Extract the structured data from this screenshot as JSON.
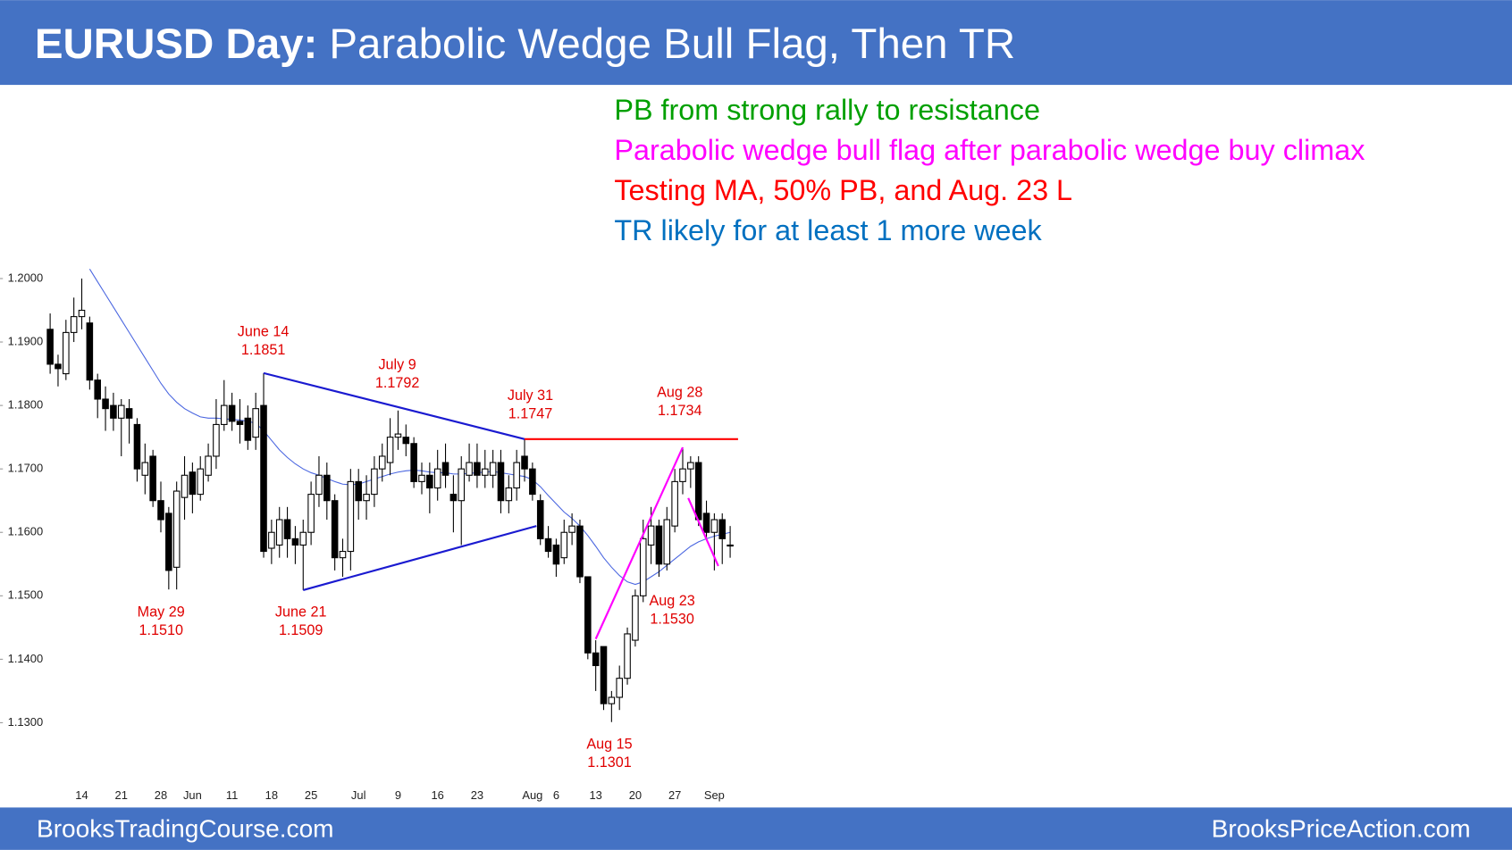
{
  "header": {
    "title_bold": "EURUSD Day:",
    "title": "Parabolic Wedge Bull Flag, Then TR"
  },
  "notes": [
    {
      "text": "PB from strong rally to resistance",
      "color": "#00a000"
    },
    {
      "text": "Parabolic wedge bull flag after parabolic wedge buy climax",
      "color": "#ff00ff"
    },
    {
      "text": "Testing MA, 50% PB, and Aug. 23 L",
      "color": "#ff0000"
    },
    {
      "text": "TR likely for at least 1 more week",
      "color": "#0070c0"
    }
  ],
  "footer": {
    "left": "BrooksTradingCourse.com",
    "right": "BrooksPriceAction.com"
  },
  "chart_data": {
    "type": "candlestick",
    "categories": [
      null,
      null,
      null,
      null,
      "14",
      null,
      null,
      null,
      null,
      "21",
      null,
      null,
      null,
      null,
      "28",
      null,
      null,
      null,
      "Jun",
      null,
      null,
      null,
      null,
      "11",
      null,
      null,
      null,
      null,
      "18",
      null,
      null,
      null,
      null,
      "25",
      null,
      null,
      null,
      null,
      null,
      "Jul",
      null,
      null,
      null,
      null,
      "9",
      null,
      null,
      null,
      null,
      "16",
      null,
      null,
      null,
      null,
      "23",
      null,
      null,
      null,
      null,
      null,
      null,
      "Aug",
      null,
      null,
      "6",
      null,
      null,
      null,
      null,
      "13",
      null,
      null,
      null,
      null,
      "20",
      null,
      null,
      null,
      null,
      "27",
      null,
      null,
      null,
      null,
      "Sep",
      null,
      null
    ],
    "open": [
      1.192,
      1.1865,
      1.185,
      1.1915,
      1.194,
      1.193,
      1.184,
      1.181,
      1.18,
      1.178,
      1.1795,
      1.177,
      1.169,
      1.172,
      1.165,
      1.163,
      1.1545,
      1.1655,
      1.1695,
      1.166,
      1.169,
      1.172,
      1.177,
      1.18,
      1.1775,
      1.178,
      1.175,
      1.18,
      1.1575,
      1.158,
      1.162,
      1.159,
      1.158,
      1.16,
      1.166,
      1.169,
      1.165,
      1.156,
      1.157,
      1.168,
      1.165,
      1.166,
      1.17,
      1.171,
      1.175,
      1.175,
      1.174,
      1.168,
      1.169,
      1.167,
      1.171,
      1.166,
      1.165,
      1.169,
      1.171,
      1.169,
      1.169,
      1.171,
      1.165,
      1.167,
      1.172,
      1.17,
      1.165,
      1.159,
      1.158,
      1.156,
      1.16,
      1.161,
      1.153,
      1.141,
      1.142,
      1.133,
      1.134,
      1.137,
      1.143,
      1.15,
      1.158,
      1.161,
      1.155,
      1.161,
      1.168,
      1.17,
      1.171,
      1.163,
      1.16,
      1.162,
      1.158
    ],
    "high": [
      1.1945,
      1.188,
      1.1935,
      1.197,
      1.2,
      1.194,
      1.185,
      1.183,
      1.182,
      1.181,
      1.181,
      1.178,
      1.174,
      1.173,
      1.168,
      1.164,
      1.168,
      1.172,
      1.171,
      1.172,
      1.174,
      1.181,
      1.184,
      1.182,
      1.181,
      1.18,
      1.182,
      1.1851,
      1.162,
      1.164,
      1.164,
      1.161,
      1.162,
      1.168,
      1.172,
      1.171,
      1.166,
      1.159,
      1.17,
      1.17,
      1.169,
      1.172,
      1.174,
      1.178,
      1.1792,
      1.177,
      1.175,
      1.171,
      1.171,
      1.173,
      1.174,
      1.169,
      1.172,
      1.174,
      1.174,
      1.173,
      1.173,
      1.173,
      1.169,
      1.173,
      1.1747,
      1.171,
      1.166,
      1.161,
      1.159,
      1.162,
      1.163,
      1.162,
      1.153,
      1.143,
      1.142,
      1.135,
      1.139,
      1.145,
      1.151,
      1.162,
      1.164,
      1.162,
      1.164,
      1.17,
      1.1734,
      1.172,
      1.172,
      1.165,
      1.163,
      1.163,
      1.161
    ],
    "low": [
      1.185,
      1.183,
      1.184,
      1.19,
      1.192,
      1.1825,
      1.178,
      1.176,
      1.176,
      1.172,
      1.174,
      1.168,
      1.166,
      1.164,
      1.16,
      1.151,
      1.151,
      1.162,
      1.163,
      1.165,
      1.168,
      1.17,
      1.176,
      1.176,
      1.174,
      1.173,
      1.173,
      1.156,
      1.155,
      1.156,
      1.156,
      1.155,
      1.1509,
      1.158,
      1.164,
      1.162,
      1.154,
      1.153,
      1.154,
      1.162,
      1.162,
      1.164,
      1.168,
      1.169,
      1.173,
      1.172,
      1.167,
      1.166,
      1.163,
      1.165,
      1.167,
      1.16,
      1.158,
      1.168,
      1.167,
      1.167,
      1.167,
      1.163,
      1.163,
      1.165,
      1.168,
      1.165,
      1.158,
      1.156,
      1.153,
      1.155,
      1.158,
      1.152,
      1.14,
      1.135,
      1.132,
      1.1301,
      1.132,
      1.136,
      1.142,
      1.149,
      1.155,
      1.153,
      1.154,
      1.16,
      1.166,
      1.167,
      1.161,
      1.159,
      1.154,
      1.155,
      1.156
    ],
    "close": [
      1.1865,
      1.1858,
      1.1915,
      1.194,
      1.195,
      1.184,
      1.181,
      1.1795,
      1.178,
      1.18,
      1.178,
      1.17,
      1.171,
      1.165,
      1.162,
      1.154,
      1.1665,
      1.169,
      1.166,
      1.17,
      1.172,
      1.177,
      1.18,
      1.1775,
      1.177,
      1.1745,
      1.1795,
      1.157,
      1.16,
      1.162,
      1.159,
      1.158,
      1.16,
      1.166,
      1.169,
      1.165,
      1.156,
      1.157,
      1.168,
      1.165,
      1.166,
      1.17,
      1.172,
      1.175,
      1.1755,
      1.174,
      1.168,
      1.169,
      1.167,
      1.17,
      1.169,
      1.165,
      1.17,
      1.171,
      1.169,
      1.17,
      1.171,
      1.165,
      1.167,
      1.171,
      1.17,
      1.166,
      1.159,
      1.157,
      1.155,
      1.16,
      1.161,
      1.153,
      1.141,
      1.139,
      1.133,
      1.134,
      1.137,
      1.144,
      1.15,
      1.159,
      1.161,
      1.155,
      1.162,
      1.168,
      1.17,
      1.171,
      1.162,
      1.16,
      1.162,
      1.159,
      1.158
    ],
    "ma": {
      "color": "#4a66e0",
      "values": [
        null,
        null,
        null,
        null,
        null,
        1.2015,
        1.1995,
        1.1975,
        1.1955,
        1.1935,
        1.1915,
        1.1895,
        1.1875,
        1.1855,
        1.1835,
        1.1818,
        1.1805,
        1.1795,
        1.1788,
        1.1782,
        1.178,
        1.178,
        1.1779,
        1.1778,
        1.1777,
        1.1775,
        1.1772,
        1.176,
        1.1745,
        1.173,
        1.1718,
        1.1708,
        1.17,
        1.1694,
        1.169,
        1.1685,
        1.168,
        1.1676,
        1.1675,
        1.1676,
        1.168,
        1.1684,
        1.1688,
        1.1692,
        1.1695,
        1.1697,
        1.1698,
        1.1697,
        1.1695,
        1.1694,
        1.1694,
        1.1692,
        1.1692,
        1.1693,
        1.1694,
        1.1695,
        1.1696,
        1.1694,
        1.1692,
        1.169,
        1.1688,
        1.1683,
        1.1672,
        1.1658,
        1.1645,
        1.1632,
        1.1622,
        1.161,
        1.1595,
        1.1578,
        1.156,
        1.1545,
        1.1532,
        1.1522,
        1.1518,
        1.1522,
        1.153,
        1.1538,
        1.1548,
        1.1558,
        1.1568,
        1.1578,
        1.1585,
        1.159,
        1.1594,
        1.1597,
        1.16
      ]
    },
    "ylim": [
      1.12,
      1.2
    ],
    "yticks": [
      {
        "value": 1.2,
        "label": "1.2000"
      },
      {
        "value": 1.19,
        "label": "1.1900"
      },
      {
        "value": 1.18,
        "label": "1.1800"
      },
      {
        "value": 1.17,
        "label": "1.1700"
      },
      {
        "value": 1.16,
        "label": "1.1600"
      },
      {
        "value": 1.15,
        "label": "1.1500"
      },
      {
        "value": 1.14,
        "label": "1.1400"
      },
      {
        "value": 1.13,
        "label": "1.1300"
      }
    ],
    "trendlines": [
      {
        "color": "#1a1ad0",
        "points": [
          [
            27,
            1.1851
          ],
          [
            60,
            1.1747
          ]
        ]
      },
      {
        "color": "#1a1ad0",
        "points": [
          [
            32,
            1.1509
          ],
          [
            61.5,
            1.161
          ]
        ]
      },
      {
        "color": "#ff0000",
        "points": [
          [
            60,
            1.1747
          ],
          [
            87,
            1.1747
          ]
        ]
      },
      {
        "color": "#ff00ff",
        "points": [
          [
            69,
            1.1432
          ],
          [
            80,
            1.1734
          ]
        ]
      },
      {
        "color": "#ff00ff",
        "points": [
          [
            80.7,
            1.1654
          ],
          [
            84.5,
            1.1547
          ]
        ]
      }
    ],
    "annotations": [
      {
        "date": "June 14",
        "price": "1.1851"
      },
      {
        "date": "July 9",
        "price": "1.1792"
      },
      {
        "date": "July 31",
        "price": "1.1747"
      },
      {
        "date": "Aug 28",
        "price": "1.1734"
      },
      {
        "date": "May 29",
        "price": "1.1510"
      },
      {
        "date": "June 21",
        "price": "1.1509"
      },
      {
        "date": "Aug 23",
        "price": "1.1530"
      },
      {
        "date": "Aug 15",
        "price": "1.1301"
      }
    ]
  }
}
